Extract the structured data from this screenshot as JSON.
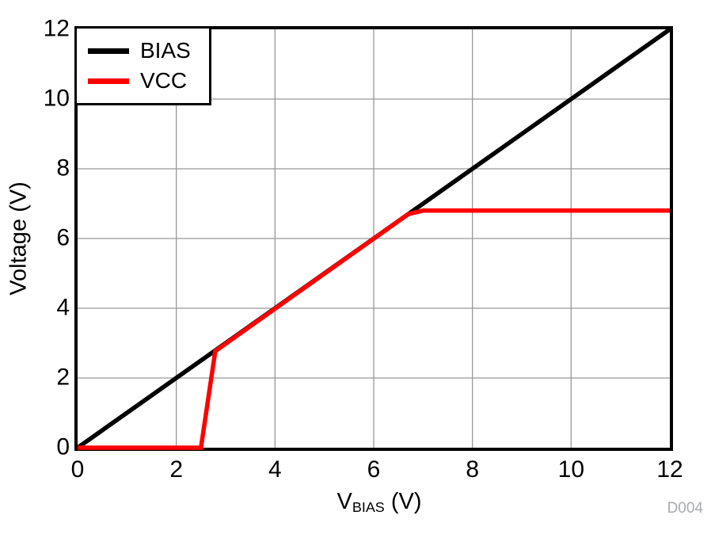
{
  "figure_id": "D004",
  "watermark_color": "#a8abae",
  "chart_data": {
    "type": "line",
    "title": "",
    "xlabel_main": "V",
    "xlabel_sub": "BIAS",
    "xlabel_unit": " (V)",
    "ylabel": "Voltage (V)",
    "xlim": [
      0,
      12
    ],
    "ylim": [
      0,
      12
    ],
    "xticks": [
      0,
      2,
      4,
      6,
      8,
      10,
      12
    ],
    "yticks": [
      0,
      2,
      4,
      6,
      8,
      10,
      12
    ],
    "grid_x": [
      2,
      4,
      6,
      8,
      10
    ],
    "grid_y": [
      2,
      4,
      6,
      8,
      10
    ],
    "grid_on": true,
    "grid_color": "#999999",
    "axis_color": "#000000",
    "background": "#ffffff",
    "legend_position": "top-left",
    "legend": [
      "BIAS",
      "VCC"
    ],
    "series": [
      {
        "name": "BIAS",
        "color": "#000000",
        "points": [
          [
            0,
            0
          ],
          [
            12,
            12
          ]
        ]
      },
      {
        "name": "VCC",
        "color": "#ff0000",
        "points": [
          [
            0,
            0
          ],
          [
            2.5,
            0
          ],
          [
            2.79,
            2.77
          ],
          [
            6.7,
            6.7
          ],
          [
            7.0,
            6.8
          ],
          [
            12,
            6.8
          ]
        ]
      }
    ]
  }
}
